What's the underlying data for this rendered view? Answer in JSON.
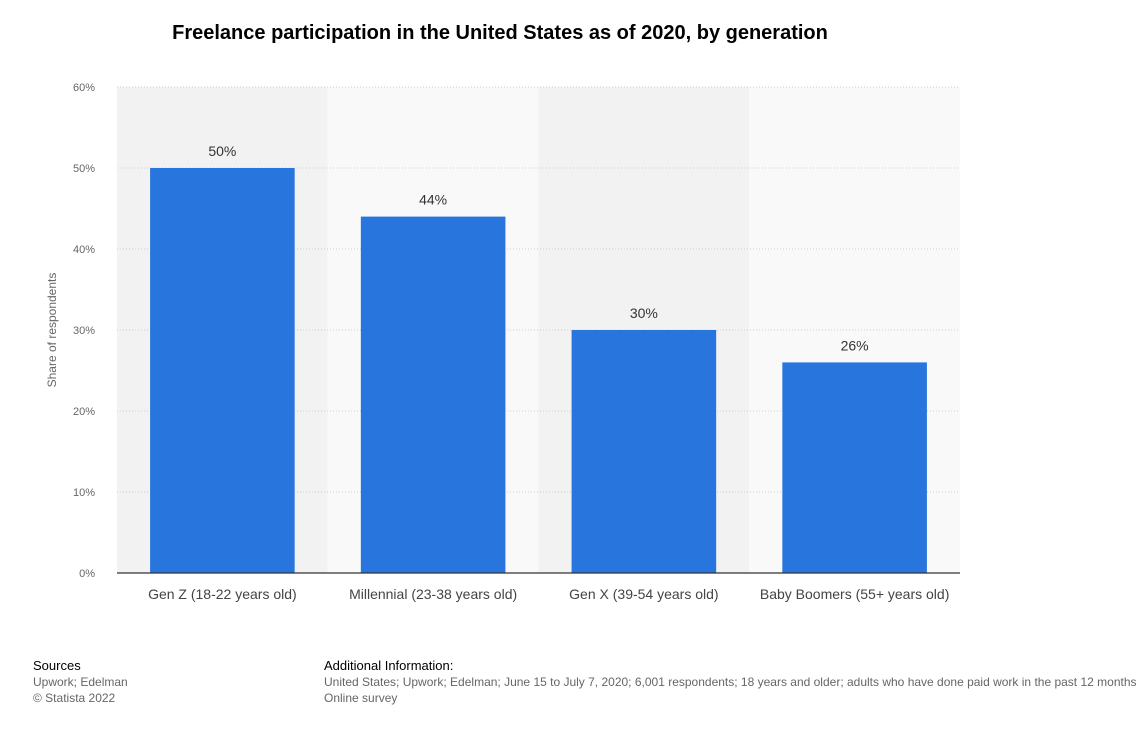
{
  "title": "Freelance participation in the United States as of 2020, by generation",
  "chart_data": {
    "type": "bar",
    "title": "Freelance participation in the United States as of 2020, by generation",
    "xlabel": "",
    "ylabel": "Share of respondents",
    "categories": [
      "Gen Z (18-22 years old)",
      "Millennial (23-38 years old)",
      "Gen X (39-54 years old)",
      "Baby Boomers (55+ years old)"
    ],
    "values": [
      50,
      44,
      30,
      26
    ],
    "value_labels": [
      "50%",
      "44%",
      "30%",
      "26%"
    ],
    "ylim": [
      0,
      60
    ],
    "yticks": [
      0,
      10,
      20,
      30,
      40,
      50,
      60
    ],
    "ytick_labels": [
      "0%",
      "10%",
      "20%",
      "30%",
      "40%",
      "50%",
      "60%"
    ],
    "grid": true,
    "colors": {
      "bar": "#2876dd",
      "band_dark": "#f2f2f2",
      "band_light": "#f9f9f9"
    }
  },
  "footer": {
    "sources_heading": "Sources",
    "sources_lines": [
      "Upwork; Edelman",
      "© Statista 2022"
    ],
    "additional_heading": "Additional Information:",
    "additional_lines": [
      "United States; Upwork; Edelman; June 15 to July 7, 2020; 6,001 respondents; 18 years and older; adults who have done paid work in the past 12 months",
      "Online survey"
    ]
  }
}
